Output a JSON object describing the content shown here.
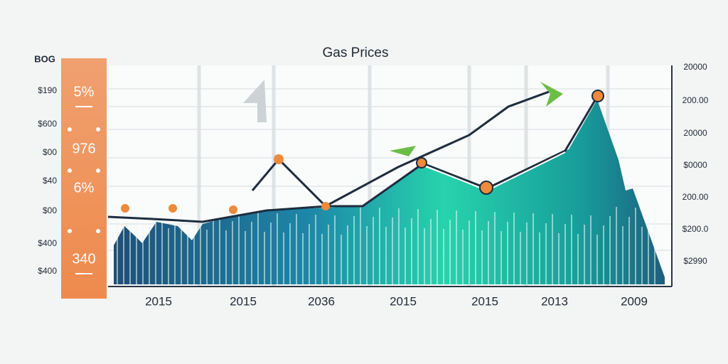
{
  "header": {
    "title": "Gas Prices",
    "corner": "BOG"
  },
  "left_labels": [
    "$190",
    "$600",
    "$00",
    "$40",
    "$00",
    "$400",
    "$400"
  ],
  "right_labels": [
    "20000",
    "200.00",
    "20000",
    "$0000",
    "200.00",
    "$200.0",
    "$2990"
  ],
  "x_labels": [
    "2015",
    "2015",
    "2036",
    "2015",
    "2015",
    "2013",
    "2009"
  ],
  "panel_labels": [
    "5%",
    "976",
    "6%",
    "340"
  ]
}
